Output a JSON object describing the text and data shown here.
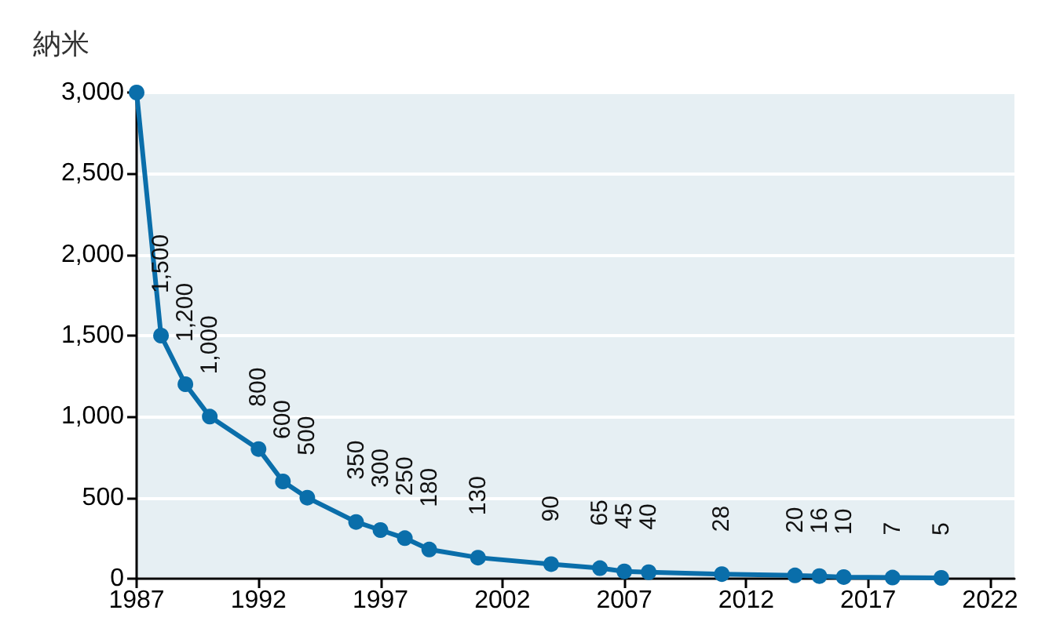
{
  "chart_data": {
    "type": "line",
    "ylabel": "納米",
    "x": [
      1987,
      1988,
      1989,
      1990,
      1992,
      1993,
      1994,
      1996,
      1997,
      1998,
      1999,
      2001,
      2004,
      2006,
      2007,
      2008,
      2011,
      2014,
      2015,
      2016,
      2018,
      2020
    ],
    "series": [
      {
        "color": "#0a6eaa",
        "values": [
          3000,
          1500,
          1200,
          1000,
          800,
          600,
          500,
          350,
          300,
          250,
          180,
          130,
          90,
          65,
          45,
          40,
          28,
          20,
          16,
          10,
          7,
          5
        ],
        "value_labels": [
          null,
          "1,500",
          "1,200",
          "1,000",
          "800",
          "600",
          "500",
          "350",
          "300",
          "250",
          "180",
          "130",
          "90",
          "65",
          "45",
          "40",
          "28",
          "20",
          "16",
          "10",
          "7",
          "5"
        ]
      }
    ],
    "xlim": [
      1987,
      2023
    ],
    "xticks": [
      1987,
      1992,
      1997,
      2002,
      2007,
      2012,
      2017,
      2022
    ],
    "ylim": [
      0,
      3000
    ],
    "yticks": [
      {
        "value": 0,
        "label": "0"
      },
      {
        "value": 500,
        "label": "500"
      },
      {
        "value": 1000,
        "label": "1,000"
      },
      {
        "value": 1500,
        "label": "1,500"
      },
      {
        "value": 2000,
        "label": "2,000"
      },
      {
        "value": 2500,
        "label": "2,500"
      },
      {
        "value": 3000,
        "label": "3,000"
      }
    ],
    "grid": "y",
    "marker": "circle",
    "line_style": "solid"
  }
}
